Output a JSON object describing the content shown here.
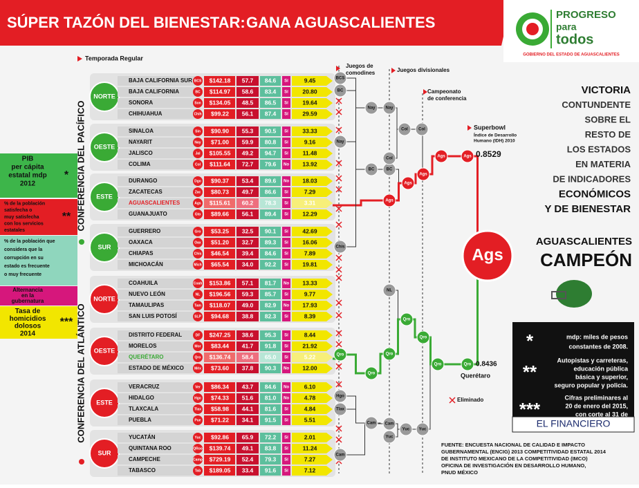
{
  "header": {
    "title_part1": "SÚPER TAZÓN DEL BIENESTAR:",
    "title_part2": "GANA AGUASCALIENTES",
    "logo": {
      "line1": "PROGRESO",
      "line2": "para",
      "line3": "todos",
      "caption": "GOBIERNO DEL ESTADO DE AGUASCALIENTES"
    }
  },
  "regular_season": "Temporada Regular",
  "legend": [
    {
      "lines": [
        "PIB",
        "per cápita",
        "estatal mdp",
        "2012"
      ],
      "mark": "*"
    },
    {
      "lines": [
        "% de la población",
        "satisfecha o",
        "muy satisfecha",
        "con los servicios",
        "estatales"
      ],
      "mark": "**"
    },
    {
      "lines": [
        "% de la población que",
        "considera que la",
        "corrupción en su",
        "estado es frecuente",
        "o muy frecuente"
      ]
    },
    {
      "lines": [
        "Alternancia",
        "en la",
        "gubernatura"
      ]
    },
    {
      "lines": [
        "Tasa de",
        "homicidios",
        "dolosos",
        "2014"
      ],
      "mark": "***"
    }
  ],
  "conferences": [
    {
      "name": "CONFERENCIA DEL PACÍFICO",
      "divisions": [
        {
          "name": "NORTE",
          "states": [
            [
              "BAJA CALIFORNIA SUR",
              "BCS",
              "$142.18",
              "57.7",
              "84.6",
              "Sí",
              "9.45"
            ],
            [
              "BAJA CALIFORNIA",
              "BC",
              "$114.97",
              "58.6",
              "83.4",
              "Sí",
              "20.80"
            ],
            [
              "SONORA",
              "Son",
              "$134.05",
              "48.5",
              "86.5",
              "Sí",
              "19.64"
            ],
            [
              "CHIHUAHUA",
              "Chih",
              "$99.22",
              "56.1",
              "87.4",
              "Sí",
              "29.59"
            ]
          ]
        },
        {
          "name": "OESTE",
          "states": [
            [
              "SINALOA",
              "Sin",
              "$90.90",
              "55.3",
              "90.5",
              "Sí",
              "33.33"
            ],
            [
              "NAYARIT",
              "Nay",
              "$71.00",
              "59.9",
              "80.8",
              "Sí",
              "9.16"
            ],
            [
              "JALISCO",
              "Jal",
              "$105.55",
              "49.2",
              "94.7",
              "Sí",
              "11.48"
            ],
            [
              "COLIMA",
              "Col",
              "$111.64",
              "72.7",
              "79.6",
              "No",
              "13.92"
            ]
          ]
        },
        {
          "name": "ESTE",
          "states": [
            [
              "DURANGO",
              "Dgo",
              "$90.37",
              "53.4",
              "89.6",
              "No",
              "18.03"
            ],
            [
              "ZACATECAS",
              "Zac",
              "$80.73",
              "49.7",
              "86.6",
              "Sí",
              "7.29"
            ],
            [
              "AGUASCALIENTES",
              "Ags",
              "$115.61",
              "60.2",
              "78.3",
              "Sí",
              "3.31"
            ],
            [
              "GUANAJUATO",
              "Gto",
              "$89.66",
              "56.1",
              "89.4",
              "Sí",
              "12.29"
            ]
          ]
        },
        {
          "name": "SUR",
          "states": [
            [
              "GUERRERO",
              "Gro",
              "$53.25",
              "32.5",
              "90.1",
              "Sí",
              "42.69"
            ],
            [
              "OAXACA",
              "Oax",
              "$51.20",
              "32.7",
              "89.3",
              "Sí",
              "16.06"
            ],
            [
              "CHIAPAS",
              "Chis",
              "$46.54",
              "39.4",
              "84.6",
              "Sí",
              "7.89"
            ],
            [
              "MICHOACÁN",
              "Mich",
              "$65.54",
              "34.0",
              "92.2",
              "Sí",
              "19.81"
            ]
          ]
        }
      ]
    },
    {
      "name": "CONFERENCIA DEL ATLÁNTICO",
      "divisions": [
        {
          "name": "NORTE",
          "states": [
            [
              "COAHUILA",
              "Coah",
              "$153.86",
              "57.1",
              "81.7",
              "No",
              "13.33"
            ],
            [
              "NUEVO LEÓN",
              "NL",
              "$196.56",
              "59.3",
              "85.7",
              "Sí",
              "9.77"
            ],
            [
              "TAMAULIPAS",
              "Tam",
              "$118.07",
              "49.0",
              "82.9",
              "No",
              "17.93"
            ],
            [
              "SAN LUIS POTOSÍ",
              "SLP",
              "$94.68",
              "38.8",
              "82.3",
              "Sí",
              "8.39"
            ]
          ]
        },
        {
          "name": "OESTE",
          "states": [
            [
              "DISTRITO FEDERAL",
              "DF",
              "$247.25",
              "38.6",
              "95.3",
              "Sí",
              "8.44"
            ],
            [
              "MORELOS",
              "Mor",
              "$83.44",
              "41.7",
              "91.8",
              "Sí",
              "21.92"
            ],
            [
              "QUERÉTARO",
              "Qro",
              "$136.74",
              "58.4",
              "65.0",
              "Sí",
              "5.22"
            ],
            [
              "ESTADO DE MÉXICO",
              "Méx",
              "$73.60",
              "37.8",
              "90.3",
              "No",
              "12.00"
            ]
          ]
        },
        {
          "name": "ESTE",
          "states": [
            [
              "VERACRUZ",
              "Ver",
              "$86.34",
              "43.7",
              "84.6",
              "No",
              "6.10"
            ],
            [
              "HIDALGO",
              "Hgo",
              "$74.33",
              "51.6",
              "81.0",
              "No",
              "4.78"
            ],
            [
              "TLAXCALA",
              "Tlax",
              "$58.98",
              "44.1",
              "81.6",
              "Sí",
              "4.84"
            ],
            [
              "PUEBLA",
              "Pue",
              "$71.22",
              "34.1",
              "91.5",
              "Sí",
              "5.51"
            ]
          ]
        },
        {
          "name": "SUR",
          "states": [
            [
              "YUCATÁN",
              "Yuc",
              "$92.86",
              "65.9",
              "72.2",
              "Sí",
              "2.01"
            ],
            [
              "QUINTANA ROO",
              "QRoo",
              "$139.74",
              "49.1",
              "83.8",
              "Sí",
              "11.24"
            ],
            [
              "CAMPECHE",
              "Camp",
              "$729.19",
              "52.4",
              "79.3",
              "Sí",
              "7.27"
            ],
            [
              "TABASCO",
              "Tab",
              "$189.05",
              "33.4",
              "91.6",
              "Sí",
              "7.12"
            ]
          ]
        }
      ]
    }
  ],
  "bracket": {
    "wildcard": [
      "Juegos de",
      "comodines"
    ],
    "divisional": "Juegos divisionales",
    "conference": [
      "Campeonato",
      "de conferencia"
    ],
    "superbowl": "Superbowl",
    "idh_label": [
      "Índice de Desarrollo",
      "Humano (IDH) 2010"
    ],
    "winner_idh": "0.8529",
    "runner_up_idh": "0.8436",
    "runner_up": "Querétaro",
    "eliminated": "Eliminado",
    "champion": "Ags",
    "nodes": [
      "BCS",
      "BC",
      "Nay",
      "Chis",
      "Nay",
      "Nay",
      "BC",
      "BC",
      "Col",
      "Col",
      "Col",
      "Ags",
      "Ags",
      "Ags",
      "Ags",
      "Ags",
      "NL",
      "Qro",
      "Qro",
      "Qro",
      "Qro",
      "Qro",
      "Qro",
      "Qro",
      "Hgo",
      "Tlax",
      "Cam",
      "Cam",
      "Cam",
      "Yuc",
      "Yuc",
      "Yuc"
    ]
  },
  "headline": [
    "VICTORIA",
    "CONTUNDENTE",
    "SOBRE EL",
    "RESTO DE",
    "LOS ESTADOS",
    "EN MATERIA",
    "DE INDICADORES",
    "ECONÓMICOS",
    "Y DE BIENESTAR"
  ],
  "champion_text": [
    "AGUASCALIENTES",
    "CAMPEÓN"
  ],
  "notes": [
    {
      "mark": "*",
      "lines": [
        "mdp: miles de pesos",
        "constantes de 2008."
      ]
    },
    {
      "mark": "**",
      "lines": [
        "Autopistas y carreteras,",
        "educación pública",
        "básica y superior,",
        "seguro popular y policía."
      ]
    },
    {
      "mark": "***",
      "lines": [
        "Cifras preliminares al",
        "20 de enero del 2015,",
        "con corte al 31 de",
        "diciembre 2014."
      ]
    }
  ],
  "publisher": "EL FINANCIERO",
  "source": [
    "FUENTE: ENCUESTA NACIONAL DE CALIDAD E IMPACTO",
    "GUBERNAMENTAL (ENCIG) 2013 COMPETITIVIDAD ESTATAL 2014",
    "DE INSTITUTO MEXICANO DE LA COMPETITIVIDAD (IMCO)",
    "OFICINA DE INVESTIGACIÓN EN DESARROLLO HUMANO,",
    "PNUD MÉXICO"
  ]
}
